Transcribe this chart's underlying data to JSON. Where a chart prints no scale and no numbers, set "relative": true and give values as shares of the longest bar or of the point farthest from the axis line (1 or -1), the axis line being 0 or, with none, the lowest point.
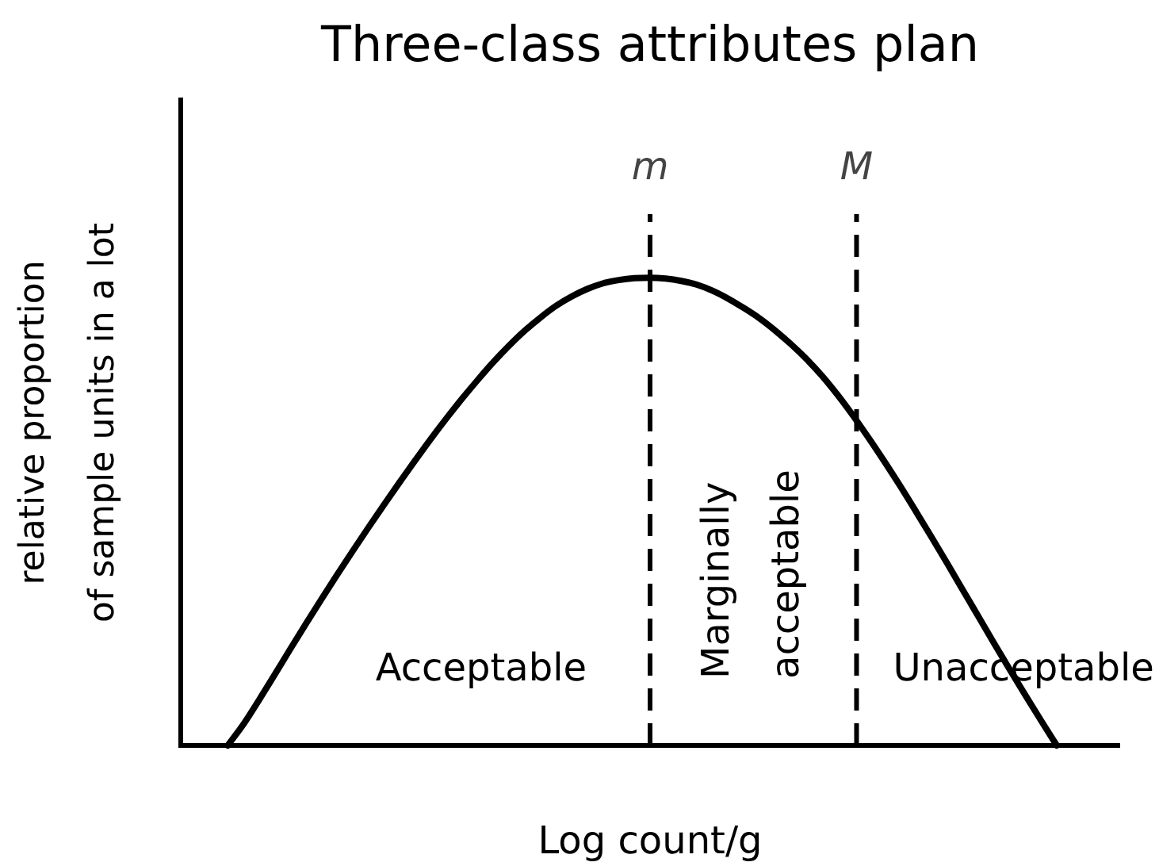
{
  "chart_data": {
    "type": "line",
    "title": "Three-class attributes plan",
    "xlabel": "Log count/g",
    "ylabel": "relative proportion\nof sample units in a lot",
    "categories": [
      null,
      null,
      null,
      null,
      null,
      null,
      null,
      null,
      null,
      null,
      null,
      null,
      null,
      null,
      null,
      null,
      null,
      null,
      null,
      null,
      null,
      null,
      null,
      null,
      null,
      null,
      null,
      null,
      null,
      null,
      null,
      null,
      null,
      null,
      null,
      null,
      null,
      null,
      null,
      null,
      null,
      null,
      null,
      null,
      null,
      null,
      null,
      null,
      null,
      null,
      null,
      null,
      null,
      null,
      null,
      null,
      null,
      null,
      null,
      null,
      null
    ],
    "values": [
      null,
      null,
      null,
      0,
      0.045,
      0.097,
      0.151,
      0.206,
      0.26,
      0.313,
      0.365,
      0.416,
      0.466,
      0.515,
      0.563,
      0.61,
      0.656,
      0.7,
      0.742,
      0.782,
      0.82,
      0.855,
      0.887,
      0.915,
      0.94,
      0.96,
      0.976,
      0.988,
      0.995,
      0.999,
      1,
      0.998,
      0.993,
      0.985,
      0.972,
      0.955,
      0.935,
      0.913,
      0.887,
      0.858,
      0.826,
      0.79,
      0.749,
      0.704,
      0.656,
      0.606,
      0.554,
      0.5,
      0.445,
      0.389,
      0.332,
      0.275,
      0.218,
      0.162,
      0.107,
      0.053,
      0,
      null,
      null,
      null,
      null
    ],
    "color": "#000000",
    "relative": true,
    "marker": "none",
    "annotations": [
      "m",
      "M",
      "Acceptable",
      "Marginally\nacceptable",
      "Unacceptable"
    ]
  }
}
